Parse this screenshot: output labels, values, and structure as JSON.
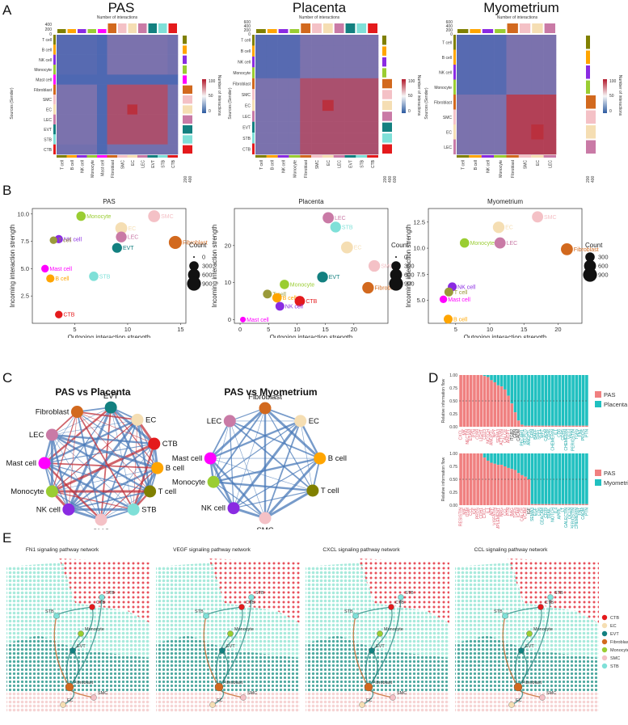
{
  "panels": {
    "A": "A",
    "B": "B",
    "C": "C",
    "D": "D",
    "E": "E"
  },
  "panelA": {
    "common": {
      "top_title": "Number of interactions",
      "y_title": "Sources (Sender)",
      "legend_title": "Number of interactions",
      "legend_ticks": [
        "100",
        "50",
        "0"
      ],
      "top_ticks_a": [
        "400",
        "200",
        "0"
      ],
      "top_ticks_b": [
        "600",
        "400",
        "200",
        "0"
      ],
      "right_ticks_a": [
        "200",
        "400"
      ],
      "right_ticks_b": [
        "200",
        "400",
        "600"
      ],
      "right_ticks_c": [
        "200",
        "400"
      ]
    },
    "heatmaps": [
      {
        "title": "PAS",
        "cells": [
          "T cell",
          "B cell",
          "NK cell",
          "Monocyte",
          "Mast cell",
          "Fibroblast",
          "SMC",
          "EC",
          "LEC",
          "EVT",
          "STB",
          "CTB"
        ]
      },
      {
        "title": "Placenta",
        "cells": [
          "T cell",
          "B cell",
          "NK cell",
          "Monocyte",
          "Fibroblast",
          "SMC",
          "EC",
          "LEC",
          "EVT",
          "STB",
          "CTB"
        ]
      },
      {
        "title": "Myometrium",
        "cells": [
          "T cell",
          "B cell",
          "NK cell",
          "Monocyte",
          "Fibroblast",
          "SMC",
          "EC",
          "LEC"
        ]
      }
    ]
  },
  "chart_data": [
    {
      "type": "scatter",
      "title": "PAS",
      "xlabel": "Outgoing interaction strength",
      "ylabel": "Incoming interaction strength",
      "xlim": [
        1,
        15.5
      ],
      "ylim": [
        0,
        10.5
      ],
      "xticks": [
        5,
        10,
        15
      ],
      "yticks": [
        2.5,
        5.0,
        7.5,
        10.0
      ],
      "points": [
        {
          "label": "SMC",
          "x": 12.5,
          "y": 9.8,
          "count": 600,
          "color": "#f4c1c6"
        },
        {
          "label": "Monocyte",
          "x": 5.6,
          "y": 9.8,
          "count": 300,
          "color": "#9acd32"
        },
        {
          "label": "EC",
          "x": 9.4,
          "y": 8.7,
          "count": 600,
          "color": "#f5deb3"
        },
        {
          "label": "LEC",
          "x": 9.4,
          "y": 7.9,
          "count": 450,
          "color": "#c97aa6"
        },
        {
          "label": "NK cell",
          "x": 3.5,
          "y": 7.7,
          "count": 200,
          "color": "#8a2be2"
        },
        {
          "label": "T cell",
          "x": 3.0,
          "y": 7.6,
          "count": 150,
          "color": "#9a9a3a"
        },
        {
          "label": "Fibroblast",
          "x": 14.5,
          "y": 7.4,
          "count": 750,
          "color": "#d2691e"
        },
        {
          "label": "EVT",
          "x": 9.0,
          "y": 6.9,
          "count": 350,
          "color": "#138080"
        },
        {
          "label": "Mast cell",
          "x": 2.2,
          "y": 5.0,
          "count": 150,
          "color": "#ff00ff"
        },
        {
          "label": "STB",
          "x": 6.8,
          "y": 4.3,
          "count": 300,
          "color": "#7fe0d8"
        },
        {
          "label": "B cell",
          "x": 2.7,
          "y": 4.1,
          "count": 200,
          "color": "#ffa500"
        },
        {
          "label": "CTB",
          "x": 3.5,
          "y": 0.8,
          "count": 150,
          "color": "#e41a1c"
        }
      ],
      "legend_title": "Count",
      "legend_values": [
        0,
        300,
        600,
        900
      ]
    },
    {
      "type": "scatter",
      "title": "Placenta",
      "xlabel": "Outgoing interaction strength",
      "ylabel": "Incoming interaction strength",
      "xlim": [
        -1,
        26
      ],
      "ylim": [
        -1,
        30
      ],
      "xticks": [
        0,
        5,
        10,
        15,
        20
      ],
      "yticks": [
        0,
        10,
        20
      ],
      "points": [
        {
          "label": "LEC",
          "x": 15.5,
          "y": 27.5,
          "count": 500,
          "color": "#c97aa6"
        },
        {
          "label": "STB",
          "x": 16.8,
          "y": 25.0,
          "count": 450,
          "color": "#7fe0d8"
        },
        {
          "label": "EC",
          "x": 18.8,
          "y": 19.5,
          "count": 600,
          "color": "#f5deb3"
        },
        {
          "label": "SMC",
          "x": 23.6,
          "y": 14.5,
          "count": 550,
          "color": "#f4c1c6"
        },
        {
          "label": "EVT",
          "x": 14.5,
          "y": 11.5,
          "count": 450,
          "color": "#138080"
        },
        {
          "label": "Fibroblast",
          "x": 22.5,
          "y": 8.6,
          "count": 550,
          "color": "#d2691e"
        },
        {
          "label": "Monocyte",
          "x": 7.8,
          "y": 9.5,
          "count": 300,
          "color": "#9acd32"
        },
        {
          "label": "T cell",
          "x": 4.8,
          "y": 6.9,
          "count": 250,
          "color": "#9a9a3a"
        },
        {
          "label": "B cell",
          "x": 6.5,
          "y": 5.9,
          "count": 300,
          "color": "#ffa500"
        },
        {
          "label": "CTB",
          "x": 10.5,
          "y": 5.0,
          "count": 400,
          "color": "#e41a1c"
        },
        {
          "label": "NK cell",
          "x": 7.0,
          "y": 3.6,
          "count": 250,
          "color": "#8a2be2"
        },
        {
          "label": "Mast cell",
          "x": 0.5,
          "y": 0.0,
          "count": 50,
          "color": "#ff00ff"
        }
      ],
      "legend_title": "Count",
      "legend_values": [
        0,
        300,
        600,
        900
      ]
    },
    {
      "type": "scatter",
      "title": "Myometrium",
      "xlabel": "Outgoing interaction strength",
      "ylabel": "Incoming interaction strength",
      "xlim": [
        1,
        23.5
      ],
      "ylim": [
        2.8,
        13.8
      ],
      "xticks": [
        5,
        10,
        15,
        20
      ],
      "yticks": [
        5.0,
        7.5,
        10.0,
        12.5
      ],
      "points": [
        {
          "label": "SMC",
          "x": 17.0,
          "y": 13.0,
          "count": 500,
          "color": "#f4c1c6"
        },
        {
          "label": "EC",
          "x": 11.3,
          "y": 12.0,
          "count": 550,
          "color": "#f5deb3"
        },
        {
          "label": "LEC",
          "x": 11.5,
          "y": 10.5,
          "count": 500,
          "color": "#c97aa6"
        },
        {
          "label": "Monocyte",
          "x": 6.3,
          "y": 10.5,
          "count": 300,
          "color": "#9acd32"
        },
        {
          "label": "Fibroblast",
          "x": 21.3,
          "y": 9.9,
          "count": 600,
          "color": "#d2691e"
        },
        {
          "label": "NK cell",
          "x": 4.5,
          "y": 6.3,
          "count": 250,
          "color": "#8a2be2"
        },
        {
          "label": "T cell",
          "x": 4.0,
          "y": 5.8,
          "count": 250,
          "color": "#9a9a3a"
        },
        {
          "label": "Mast cell",
          "x": 3.2,
          "y": 5.1,
          "count": 150,
          "color": "#ff00ff"
        },
        {
          "label": "B cell",
          "x": 3.9,
          "y": 3.2,
          "count": 250,
          "color": "#ffa500"
        }
      ],
      "legend_title": "Count",
      "legend_values": [
        300,
        600,
        900
      ]
    },
    {
      "type": "bar",
      "title": "PAS vs Placenta",
      "ylabel": "Relative information flow",
      "yticks": [
        "1.00",
        "0.75",
        "0.50",
        "0.25",
        "0.00"
      ],
      "categories": [
        "CXCL",
        "MK",
        "NECTIN",
        "ESAM",
        "PTN",
        "CD99",
        "LIGHT",
        "CD23",
        "NOTCH",
        "ANGPTL",
        "NPY",
        "SEMA3",
        "ACTIVIN",
        "CALCR",
        "ANGPT",
        "ITGB2",
        "GRN",
        "CADM",
        "PECAM1",
        "SELPLG",
        "ANGPTL",
        "GRN",
        "BAFF",
        "SPP1",
        "MPZ",
        "CADM",
        "CD46",
        "CHEMERIN",
        "IL1",
        "CD6",
        "CDH5",
        "CHEMERIN",
        "VEGI",
        "PERIOSTIN",
        "TGFb",
        "FN1",
        "PROS",
        "PTN"
      ],
      "pas_values": [
        1.0,
        1.0,
        1.0,
        1.0,
        1.0,
        1.0,
        1.0,
        0.98,
        0.96,
        0.9,
        0.86,
        0.8,
        0.78,
        0.72,
        0.6,
        0.45,
        0.28,
        0.12,
        0.04,
        0.02,
        0.02,
        0.02,
        0.02,
        0.02,
        0.02,
        0.02,
        0.02,
        0.02,
        0.02,
        0.02,
        0.02,
        0.02,
        0.02,
        0.02,
        0.02,
        0.02,
        0.02,
        0.02
      ],
      "legend": [
        "PAS",
        "Placenta"
      ],
      "colors": [
        "#f08080",
        "#20c0c0"
      ]
    },
    {
      "type": "bar",
      "title": "PAS vs Myometrium",
      "ylabel": "Relative information flow",
      "yticks": [
        "1.00",
        "0.75",
        "0.50",
        "0.25",
        "0.00"
      ],
      "categories": [
        "RESISTIN",
        "MIF",
        "OSM",
        "CCL",
        "IGF",
        "PROS",
        "CDH1",
        "CXCL",
        "IL1",
        "APP",
        "VISFATIN",
        "COMPLEMENT",
        "NRG",
        "CCL",
        "PTN",
        "BAG",
        "TGFb",
        "ICAM",
        "CALCR",
        "VCAM",
        "IGF",
        "SEMA3",
        "EGF",
        "CD6",
        "CEACAM",
        "CD39",
        "TRAIL",
        "NOTCH",
        "IL4",
        "APRIL",
        "LT",
        "GALECTIN",
        "OCLN",
        "PERIOSTIN",
        "CHEMERIN",
        "FN1",
        "CADM",
        "PTN"
      ],
      "pas_values": [
        1.0,
        1.0,
        1.0,
        1.0,
        1.0,
        1.0,
        1.0,
        0.92,
        0.86,
        0.82,
        0.8,
        0.78,
        0.78,
        0.75,
        0.72,
        0.7,
        0.68,
        0.62,
        0.58,
        0.55,
        0.5,
        0.02,
        0.02,
        0.02,
        0.02,
        0.02,
        0.02,
        0.02,
        0.02,
        0.02,
        0.02,
        0.02,
        0.02,
        0.02,
        0.02,
        0.02,
        0.02,
        0.02
      ],
      "legend": [
        "PAS",
        "Myometrium"
      ],
      "colors": [
        "#f08080",
        "#20c0c0"
      ]
    }
  ],
  "panelC": {
    "networks": [
      {
        "title": "PAS vs Placenta",
        "nodes": [
          "EVT",
          "EC",
          "CTB",
          "B cell",
          "T cell",
          "STB",
          "SMC",
          "NK cell",
          "Monocyte",
          "Mast cell",
          "LEC",
          "Fibroblast"
        ]
      },
      {
        "title": "PAS vs Myometrium",
        "nodes": [
          "Fibroblast",
          "EC",
          "B cell",
          "T cell",
          "SMC",
          "NK cell",
          "Monocyte",
          "Mast cell",
          "LEC"
        ]
      }
    ]
  },
  "panelE": {
    "titles": [
      "FN1 signaling pathway network",
      "VEGF signaling pathway network",
      "CXCL signaling pathway network",
      "CCL signaling pathway network"
    ],
    "legend": [
      {
        "label": "CTB",
        "color": "#e41a1c"
      },
      {
        "label": "EC",
        "color": "#f5deb3"
      },
      {
        "label": "EVT",
        "color": "#138080"
      },
      {
        "label": "Fibroblast",
        "color": "#d2691e"
      },
      {
        "label": "Monocyte",
        "color": "#9acd32"
      },
      {
        "label": "SMC",
        "color": "#f4c1c6"
      },
      {
        "label": "STB",
        "color": "#7fe0d8"
      }
    ],
    "node_labels": [
      "STB",
      "STB",
      "CTB",
      "Monocyte",
      "EVT",
      "Fibroblast",
      "SMC",
      "EC"
    ]
  }
}
